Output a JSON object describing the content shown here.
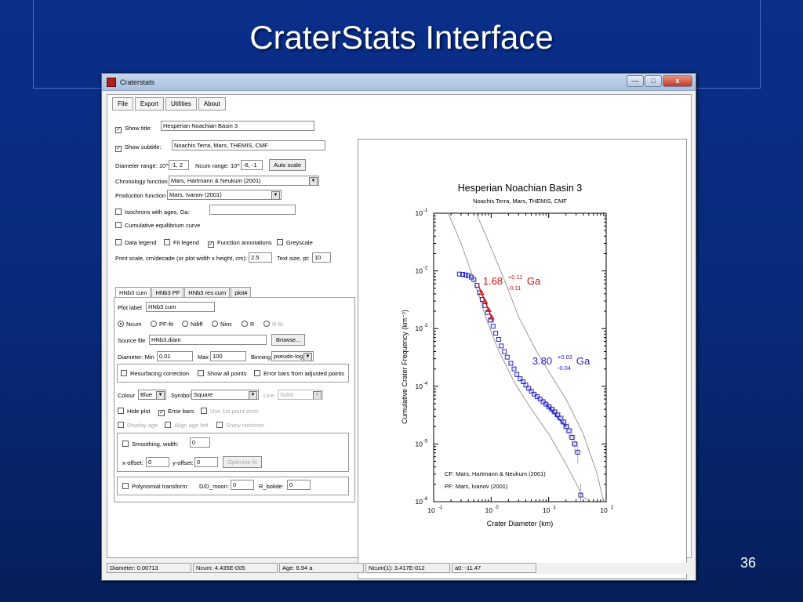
{
  "slide": {
    "title": "CraterStats Interface",
    "page_number": "36"
  },
  "window": {
    "title": "Craterstats",
    "minimize": "—",
    "maximize": "□",
    "close": "x"
  },
  "menu": [
    "File",
    "Export",
    "Utilities",
    "About"
  ],
  "settings": {
    "show_title_label": "Show title:",
    "show_title_checked": true,
    "title_value": "Hesperian Noachian Basin 3",
    "show_subtitle_label": "Show subtitle:",
    "show_subtitle_checked": true,
    "subtitle_value": "Noachis Terra, Mars, THEMIS, CMF",
    "diameter_range_label": "Diameter range: 10^",
    "diameter_range_value": "-1, 2",
    "ncum_range_label": "Ncum range: 10^",
    "ncum_range_value": "-6, -1",
    "auto_scale_label": "Auto scale",
    "chronology_label": "Chronology function",
    "chronology_value": "Mars, Hartmann & Neukum (2001)",
    "production_label": "Production function",
    "production_value": "Mars, Ivanov (2001)",
    "isochrons_label": "Isochrons with ages, Ga:",
    "isochrons_value": "",
    "equilibrium_label": "Cumulative equilibrium curve",
    "data_legend_label": "Data legend",
    "fit_legend_label": "Fit legend",
    "function_annotations_label": "Function annotations",
    "function_annotations_checked": true,
    "greyscale_label": "Greyscale",
    "print_scale_label": "Print scale, cm/decade (or plot width x height, cm):",
    "print_scale_value": "2.5",
    "text_size_label": "Text size, pt:",
    "text_size_value": "10"
  },
  "tabs": [
    "HNb3 cum",
    "HNb3 PF",
    "HNb3 res cum",
    "plot4"
  ],
  "panel": {
    "plot_label_label": "Plot label",
    "plot_label_value": "HNb3 cum",
    "modes": [
      "Ncum",
      "PF-fit",
      "Ndiff",
      "Ninc",
      "R",
      "R-fit"
    ],
    "mode_selected": "Ncum",
    "source_file_label": "Source file",
    "source_file_value": "HNb3.diam",
    "browse_label": "Browse...",
    "diameter_label": "Diameter: Min",
    "diameter_min": "0.01",
    "max_label": "Max",
    "diameter_max": "100",
    "binning_label": "Binning",
    "binning_value": "pseudo-log",
    "resurfacing_label": "Resurfacing correction",
    "show_all_points_label": "Show all points",
    "error_bars_adjusted_label": "Error bars from adjusted points",
    "colour_label": "Colour",
    "colour_value": "Blue",
    "symbol_label": "Symbol",
    "symbol_value": "Square",
    "line_label": "Line",
    "line_value": "Solid",
    "hide_plot_label": "Hide plot",
    "error_bars_label": "Error bars",
    "error_bars_checked": true,
    "first_point_error_label": "Use 1st point error",
    "display_age_label": "Display age",
    "align_age_label": "Align age left",
    "show_isochron_label": "Show isochron",
    "smoothing_label": "Smoothing, width:",
    "smoothing_value": "0",
    "x_offset_label": "x-offset:",
    "x_offset_value": "0",
    "y_offset_label": "y-offset:",
    "y_offset_value": "0",
    "optimise_label": "Optimise fit",
    "polynomial_label": "Polynomial transform:",
    "dd_moon_label": "D/D_moon:",
    "dd_moon_value": "0",
    "r_bolide_label": "R_bolide:",
    "r_bolide_value": "0"
  },
  "status": [
    "Diameter: 0.00713",
    "Ncum: 4.435E-005",
    "Age: 6.94 a",
    "Ncum(1): 3.417E-012",
    "a0: -11.47"
  ],
  "colors": {
    "series": "#2222cc",
    "fit_red": "#cc1111",
    "curve": "#9a9a9a"
  },
  "chart_data": {
    "type": "scatter",
    "title": "Hesperian Noachian Basin 3",
    "subtitle": "Noachis Terra, Mars, THEMIS, CMF",
    "xlabel": "Crater Diameter (km)",
    "ylabel": "Cumulative Crater Frequency (km⁻²)",
    "x_scale": "log",
    "y_scale": "log",
    "xlim": [
      0.1,
      100
    ],
    "ylim": [
      1e-06,
      0.1
    ],
    "x_ticks": [
      {
        "base": "10",
        "exp": "-1"
      },
      {
        "base": "10",
        "exp": "0"
      },
      {
        "base": "10",
        "exp": "1"
      },
      {
        "base": "10",
        "exp": "2"
      }
    ],
    "y_ticks": [
      {
        "base": "10",
        "exp": "-1"
      },
      {
        "base": "10",
        "exp": "-2"
      },
      {
        "base": "10",
        "exp": "-3"
      },
      {
        "base": "10",
        "exp": "-4"
      },
      {
        "base": "10",
        "exp": "-5"
      },
      {
        "base": "10",
        "exp": "-6"
      }
    ],
    "series": [
      {
        "x": [
          0.28,
          0.32,
          0.36,
          0.4,
          0.45,
          0.5,
          0.57,
          0.63,
          0.7,
          0.78,
          0.87,
          0.97,
          1.08,
          1.2,
          1.35,
          1.5,
          1.7,
          1.9,
          2.2,
          2.5,
          2.8,
          3.2,
          3.6,
          4.0,
          4.5,
          5.0,
          5.6,
          6.3,
          7.1,
          8.0,
          9.0,
          10.1,
          11.3,
          12.7,
          14.2,
          16.0,
          18.0,
          20.2,
          22.6,
          25.4,
          28.5,
          32,
          36
        ],
        "y": [
          0.0088,
          0.0087,
          0.0085,
          0.0083,
          0.0078,
          0.0071,
          0.0056,
          0.0042,
          0.0032,
          0.0025,
          0.0019,
          0.0014,
          0.0011,
          0.00083,
          0.00065,
          0.0005,
          0.0004,
          0.00032,
          0.00025,
          0.0002,
          0.00016,
          0.000135,
          0.00012,
          0.000105,
          9.2e-05,
          8.2e-05,
          7.3e-05,
          6.6e-05,
          6e-05,
          5.4e-05,
          4.9e-05,
          4.4e-05,
          4e-05,
          3.6e-05,
          3.2e-05,
          2.8e-05,
          2.4e-05,
          2e-05,
          1.7e-05,
          1.3e-05,
          1e-05,
          7.2e-06,
          1.3e-06
        ]
      }
    ],
    "fits": [
      {
        "age": "1.68",
        "plus": "+0.11",
        "minus": "-0.11",
        "unit": "Ga",
        "color": "#cc1111",
        "x": [
          0.6,
          1.1
        ],
        "y": [
          0.0056,
          0.0013
        ],
        "label_x": 0.72,
        "label_y": 0.0058
      },
      {
        "age": "3.80",
        "plus": "+0.03",
        "minus": "-0.04",
        "unit": "Ga",
        "color": "#2222cc",
        "x": [
          9,
          20
        ],
        "y": [
          4.9e-05,
          2e-05
        ],
        "label_x": 5.2,
        "label_y": 0.00024
      }
    ],
    "annotations": [
      "CF: Mars, Hartmann & Neukum (2001)",
      "PF: Mars, Ivanov (2001)"
    ]
  }
}
